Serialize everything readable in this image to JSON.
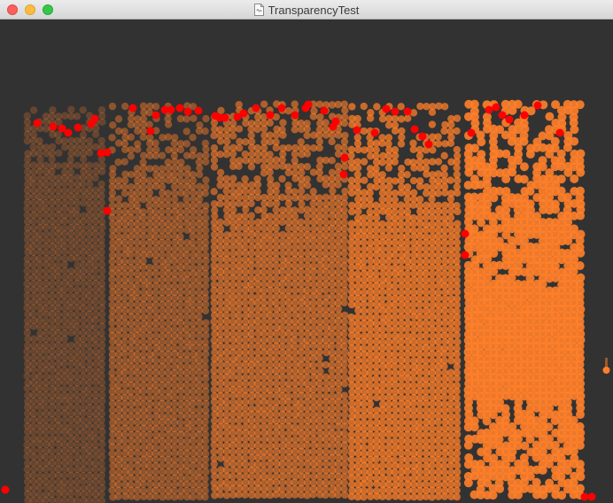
{
  "window": {
    "title": "TransparencyTest",
    "title_icon": "document-icon"
  },
  "colors": {
    "background": "#323232",
    "particle": "#ff7f2a",
    "highlight": "#ff0000"
  },
  "bins": {
    "count": 5,
    "particle_opacity": [
      0.25,
      0.45,
      0.6,
      0.75,
      0.9
    ]
  }
}
